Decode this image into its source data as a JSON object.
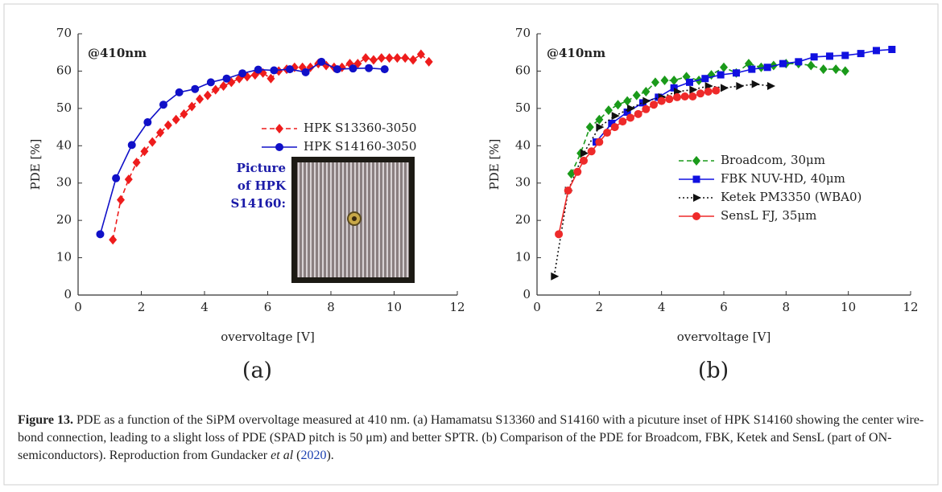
{
  "chart_data": [
    {
      "type": "line",
      "panel_label": "(a)",
      "annotation": "@410nm",
      "xlabel": "overvoltage [V]",
      "ylabel": "PDE [%]",
      "xlim": [
        0,
        12
      ],
      "xticks": [
        0,
        2,
        4,
        6,
        8,
        10,
        12
      ],
      "ylim": [
        0,
        70
      ],
      "yticks": [
        0,
        10,
        20,
        30,
        40,
        50,
        60,
        70
      ],
      "legend": "upper right",
      "inset_text": [
        "Picture",
        "of HPK",
        "S14160:"
      ],
      "series": [
        {
          "name": "HPK S13360-3050",
          "color": "#ee1c1c",
          "marker": "diamond",
          "dash": "dashed",
          "x": [
            1.1,
            1.35,
            1.6,
            1.85,
            2.1,
            2.35,
            2.6,
            2.85,
            3.1,
            3.35,
            3.6,
            3.85,
            4.1,
            4.35,
            4.6,
            4.85,
            5.1,
            5.35,
            5.6,
            5.85,
            6.1,
            6.35,
            6.6,
            6.85,
            7.1,
            7.35,
            7.6,
            7.85,
            8.1,
            8.35,
            8.6,
            8.85,
            9.1,
            9.35,
            9.6,
            9.85,
            10.1,
            10.35,
            10.6,
            10.85,
            11.1
          ],
          "values": [
            14.8,
            25.5,
            31,
            35.5,
            38.5,
            41,
            43.5,
            45.5,
            47,
            48.5,
            50.5,
            52.5,
            53.5,
            55,
            56,
            57,
            58,
            58.5,
            59,
            59.5,
            58,
            60,
            60.5,
            61,
            61,
            61,
            62,
            61.5,
            61,
            61,
            62,
            62,
            63.5,
            63,
            63.5,
            63.5,
            63.5,
            63.5,
            63,
            64.5,
            62.5
          ]
        },
        {
          "name": "HPK S14160-3050",
          "color": "#1010c8",
          "marker": "circle",
          "dash": "solid",
          "x": [
            0.7,
            1.2,
            1.7,
            2.2,
            2.7,
            3.2,
            3.7,
            4.2,
            4.7,
            5.2,
            5.7,
            6.2,
            6.7,
            7.2,
            7.7,
            8.2,
            8.7,
            9.2,
            9.7
          ],
          "values": [
            16.3,
            31.3,
            40.2,
            46.3,
            51,
            54.3,
            55.2,
            57,
            58,
            59.4,
            60.4,
            60.2,
            60.5,
            59.7,
            62.5,
            60.5,
            60.7,
            60.8,
            60.5
          ]
        }
      ]
    },
    {
      "type": "line",
      "panel_label": "(b)",
      "annotation": "@410nm",
      "xlabel": "overvoltage [V]",
      "ylabel": "PDE [%]",
      "xlim": [
        0,
        12
      ],
      "xticks": [
        0,
        2,
        4,
        6,
        8,
        10,
        12
      ],
      "ylim": [
        0,
        70
      ],
      "yticks": [
        0,
        10,
        20,
        30,
        40,
        50,
        60,
        70
      ],
      "legend": "center right",
      "series": [
        {
          "name": "Broadcom, 30μm",
          "color": "#1a9a1a",
          "marker": "diamond",
          "dash": "dashed",
          "x": [
            1.1,
            1.4,
            1.7,
            2,
            2.3,
            2.6,
            2.9,
            3.2,
            3.5,
            3.8,
            4.1,
            4.4,
            4.8,
            5.2,
            5.6,
            6,
            6.4,
            6.8,
            7.2,
            7.6,
            8,
            8.4,
            8.8,
            9.2,
            9.6,
            9.9
          ],
          "values": [
            32.5,
            38,
            45,
            47,
            49.5,
            51,
            52,
            53.5,
            54.5,
            57,
            57.5,
            57.5,
            58.5,
            57.5,
            59,
            61,
            59.5,
            62,
            61,
            61.5,
            62,
            62,
            61.5,
            60.5,
            60.5,
            60
          ]
        },
        {
          "name": "FBK NUV-HD, 40μm",
          "color": "#1010e0",
          "marker": "square",
          "dash": "solid",
          "x": [
            1.9,
            2.4,
            2.9,
            3.4,
            3.9,
            4.4,
            4.9,
            5.4,
            5.9,
            6.4,
            6.9,
            7.4,
            7.9,
            8.4,
            8.9,
            9.4,
            9.9,
            10.4,
            10.9,
            11.4
          ],
          "values": [
            41,
            46,
            49,
            51.5,
            53,
            55.5,
            57,
            58,
            59,
            59.5,
            60.5,
            61,
            62,
            62.5,
            63.8,
            64,
            64.2,
            64.7,
            65.5,
            65.8
          ]
        },
        {
          "name": "Ketek PM3350 (WBA0)",
          "color": "#111111",
          "marker": "triangle",
          "dash": "dotted",
          "x": [
            0.55,
            1,
            1.5,
            2,
            2.5,
            3,
            3.5,
            4,
            4.5,
            5,
            5.5,
            6,
            6.5,
            7,
            7.5
          ],
          "values": [
            5,
            28,
            38,
            45,
            48,
            50,
            52,
            53,
            54.5,
            55,
            56,
            55.5,
            56,
            56.5,
            56
          ]
        },
        {
          "name": "SensL FJ, 35μm",
          "color": "#ee2a2a",
          "marker": "circle",
          "dash": "solid",
          "x": [
            0.7,
            1,
            1.3,
            1.5,
            1.75,
            2,
            2.25,
            2.5,
            2.75,
            3,
            3.25,
            3.5,
            3.75,
            4,
            4.25,
            4.5,
            4.75,
            5,
            5.25,
            5.5,
            5.75
          ],
          "values": [
            16.3,
            28,
            33,
            36,
            38.5,
            41,
            43.5,
            45,
            46.5,
            47.5,
            48.5,
            49.8,
            51,
            52,
            52.5,
            53,
            53.2,
            53.2,
            54,
            54.5,
            54.8
          ]
        }
      ]
    }
  ],
  "caption": {
    "label": "Figure 13.",
    "text": "PDE as a function of the SiPM overvoltage measured at 410 nm. (a) Hamamatsu S13360 and S14160 with a picuture inset of HPK S14160 showing the center wire-bond connection, leading to a slight loss of PDE (SPAD pitch is 50 μm) and better SPTR. (b) Comparison of the PDE for Broadcom, FBK, Ketek and SensL (part of ON-semiconductors). Reproduction from Gundacker ",
    "italic": "et al",
    "open": " (",
    "year": "2020",
    "close": ")."
  }
}
